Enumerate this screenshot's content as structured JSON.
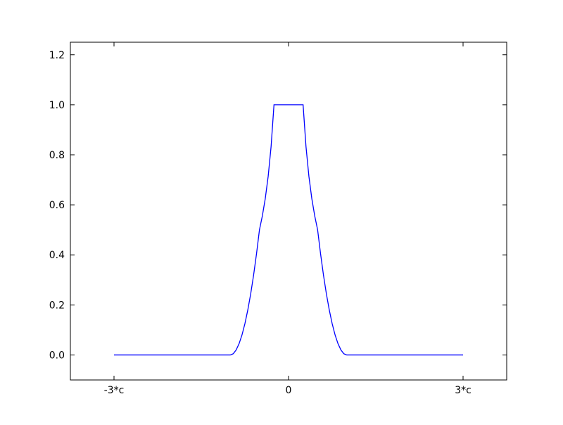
{
  "chart_data": {
    "type": "line",
    "title": "",
    "xlabel": "",
    "ylabel": "",
    "x_unit_label": "c",
    "xlim": [
      -3.75,
      3.75
    ],
    "ylim": [
      -0.1,
      1.25
    ],
    "grid": false,
    "x_ticks": [
      {
        "value": -3,
        "label": "-3*c"
      },
      {
        "value": 0,
        "label": "0"
      },
      {
        "value": 3,
        "label": "3*c"
      }
    ],
    "y_ticks": [
      {
        "value": 0.0,
        "label": "0.0"
      },
      {
        "value": 0.2,
        "label": "0.2"
      },
      {
        "value": 0.4,
        "label": "0.4"
      },
      {
        "value": 0.6,
        "label": "0.6"
      },
      {
        "value": 0.8,
        "label": "0.8"
      },
      {
        "value": 1.0,
        "label": "1.0"
      },
      {
        "value": 1.2,
        "label": "1.2"
      }
    ],
    "series": [
      {
        "color": "#0000ff",
        "x": [
          -3,
          -1,
          -0.95,
          -0.9,
          -0.85,
          -0.8,
          -0.75,
          -0.7,
          -0.65,
          -0.6,
          -0.55,
          -0.5,
          -0.45,
          -0.4,
          -0.35,
          -0.3,
          -0.25,
          0,
          0.25,
          0.3,
          0.35,
          0.4,
          0.45,
          0.5,
          0.55,
          0.6,
          0.65,
          0.7,
          0.75,
          0.8,
          0.85,
          0.9,
          0.95,
          1,
          3
        ],
        "y": [
          0,
          0,
          0.005,
          0.02,
          0.045,
          0.08,
          0.125,
          0.18,
          0.245,
          0.32,
          0.405,
          0.5,
          0.556,
          0.625,
          0.714,
          0.833,
          1.0,
          1.0,
          1.0,
          0.833,
          0.714,
          0.625,
          0.556,
          0.5,
          0.405,
          0.32,
          0.245,
          0.18,
          0.125,
          0.08,
          0.045,
          0.02,
          0.005,
          0,
          0
        ]
      }
    ]
  }
}
